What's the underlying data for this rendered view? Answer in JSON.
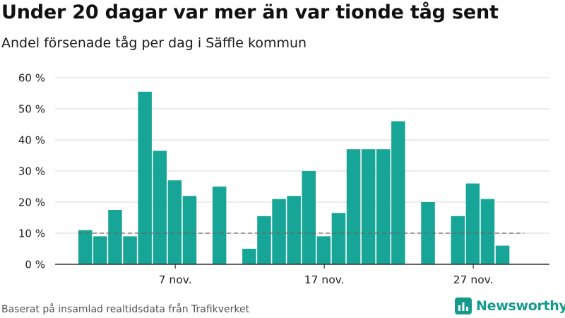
{
  "header": {
    "title": "Under 20 dagar var mer än var tionde tåg sent",
    "subtitle": "Andel försenade tåg per dag i Säffle kommun"
  },
  "footer": {
    "source": "Baserat på insamlad realtidsdata från Trafikverket",
    "brand": "Newsworthy"
  },
  "colors": {
    "bar": "#16a597",
    "grid": "#d9d9d9",
    "reference_line": "#666666",
    "axis": "#333333",
    "brand": "#159b8c"
  },
  "chart_data": {
    "type": "bar",
    "title": "Under 20 dagar var mer än var tionde tåg sent",
    "subtitle": "Andel försenade tåg per dag i Säffle kommun",
    "categories": [
      "1 nov.",
      "2 nov.",
      "3 nov.",
      "4 nov.",
      "5 nov.",
      "6 nov.",
      "7 nov.",
      "8 nov.",
      "9 nov.",
      "10 nov.",
      "11 nov.",
      "12 nov.",
      "13 nov.",
      "14 nov.",
      "15 nov.",
      "16 nov.",
      "17 nov.",
      "18 nov.",
      "19 nov.",
      "20 nov.",
      "21 nov.",
      "22 nov.",
      "23 nov.",
      "24 nov.",
      "25 nov.",
      "26 nov.",
      "27 nov.",
      "28 nov.",
      "29 nov.",
      "30 nov."
    ],
    "x_tick_labels": [
      "7 nov.",
      "17 nov.",
      "27 nov."
    ],
    "series": [
      {
        "values": [
          11,
          9,
          17.5,
          9,
          55.5,
          36.5,
          27,
          22,
          null,
          25,
          null,
          5,
          15.5,
          21,
          22,
          30,
          9,
          16.5,
          37,
          37,
          37,
          46,
          null,
          20,
          null,
          15.5,
          26,
          21,
          6,
          null
        ]
      }
    ],
    "reference_line": 10,
    "y_tick_labels": [
      "0 %",
      "10 %",
      "20 %",
      "30 %",
      "40 %",
      "50 %",
      "60 %"
    ],
    "ylim": [
      0,
      60
    ],
    "grid": true,
    "legend": "none"
  }
}
